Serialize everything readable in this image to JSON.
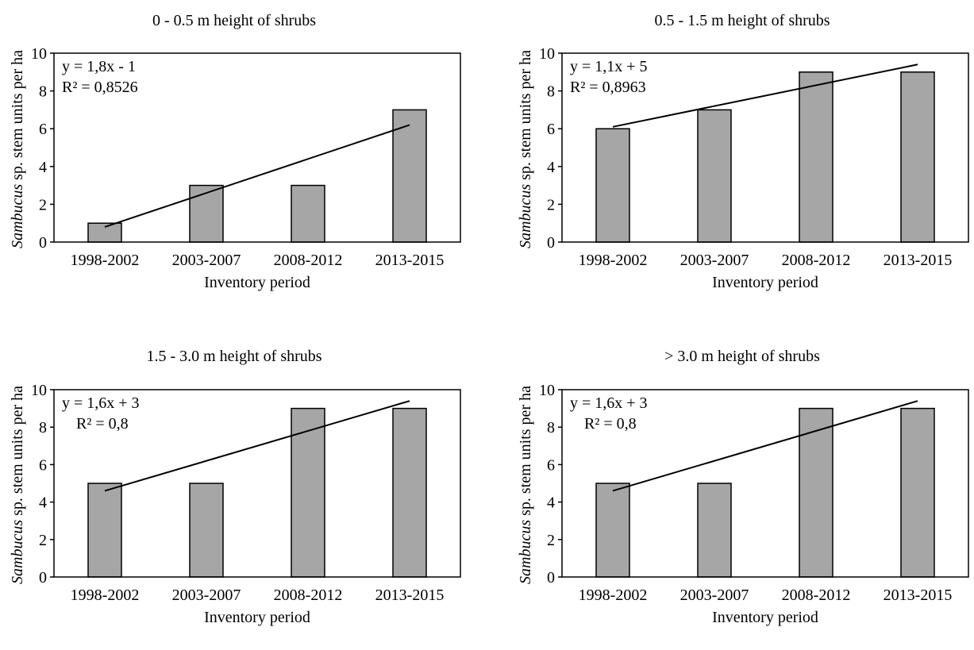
{
  "figure": {
    "bar_color": "#a6a6a6",
    "bar_stroke": "#000000",
    "trend_color": "#000000"
  },
  "chart_data": [
    {
      "type": "bar",
      "title": "0 - 0.5 m height of shrubs",
      "xlabel": "Inventory period",
      "ylabel_italic": "Sambucus",
      "ylabel_rest": " sp. stem units per ha",
      "categories": [
        "1998-2002",
        "2003-2007",
        "2008-2012",
        "2013-2015"
      ],
      "values": [
        1,
        3,
        3,
        7
      ],
      "ylim": [
        0,
        10
      ],
      "yticks": [
        "0",
        "2",
        "4",
        "6",
        "8",
        "10"
      ],
      "trendline": {
        "equation": "y = 1,8x - 1",
        "r2": "R² = 0,8526",
        "slope": 1.8,
        "intercept": -1
      }
    },
    {
      "type": "bar",
      "title": "0.5 - 1.5 m  height of shrubs",
      "xlabel": "Inventory period",
      "ylabel_italic": "Sambucus",
      "ylabel_rest": " sp. stem units per ha",
      "categories": [
        "1998-2002",
        "2003-2007",
        "2008-2012",
        "2013-2015"
      ],
      "values": [
        6,
        7,
        9,
        9
      ],
      "ylim": [
        0,
        10
      ],
      "yticks": [
        "0",
        "2",
        "4",
        "6",
        "8",
        "10"
      ],
      "trendline": {
        "equation": "y = 1,1x + 5",
        "r2": "R² = 0,8963",
        "slope": 1.1,
        "intercept": 5
      }
    },
    {
      "type": "bar",
      "title": "1.5 - 3.0 m  height of shrubs",
      "xlabel": "Inventory period",
      "ylabel_italic": "Sambucus",
      "ylabel_rest": " sp. stem units per ha",
      "categories": [
        "1998-2002",
        "2003-2007",
        "2008-2012",
        "2013-2015"
      ],
      "values": [
        5,
        5,
        9,
        9
      ],
      "ylim": [
        0,
        10
      ],
      "yticks": [
        "0",
        "2",
        "4",
        "6",
        "8",
        "10"
      ],
      "trendline": {
        "equation": "y = 1,6x + 3",
        "r2": "R² = 0,8",
        "slope": 1.6,
        "intercept": 3
      }
    },
    {
      "type": "bar",
      "title": ">  3.0 m  height of shrubs",
      "xlabel": "Inventory period",
      "ylabel_italic": "Sambucus",
      "ylabel_rest": " sp. stem units per ha",
      "categories": [
        "1998-2002",
        "2003-2007",
        "2008-2012",
        "2013-2015"
      ],
      "values": [
        5,
        5,
        9,
        9
      ],
      "ylim": [
        0,
        10
      ],
      "yticks": [
        "0",
        "2",
        "4",
        "6",
        "8",
        "10"
      ],
      "trendline": {
        "equation": "y = 1,6x + 3",
        "r2": "R² = 0,8",
        "slope": 1.6,
        "intercept": 3
      }
    }
  ]
}
